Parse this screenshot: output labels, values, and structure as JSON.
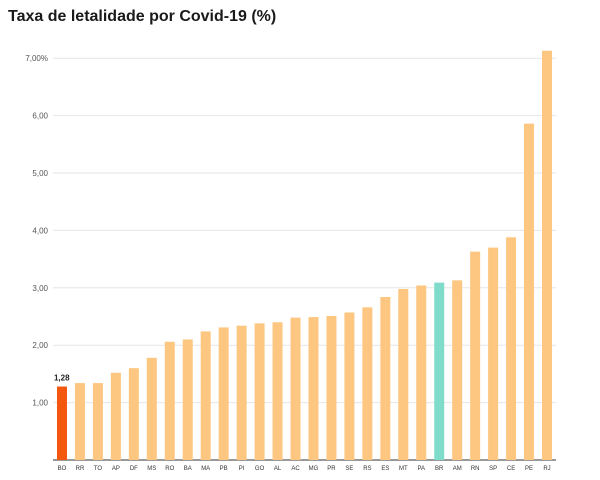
{
  "chart_data": {
    "type": "bar",
    "title": "Taxa de letalidade por Covid-19 (%)",
    "xlabel": "",
    "ylabel": "",
    "ylim": [
      0,
      7.5
    ],
    "grid": true,
    "y_ticks": [
      {
        "value": 1,
        "label": "1,00"
      },
      {
        "value": 2,
        "label": "2,00"
      },
      {
        "value": 3,
        "label": "3,00"
      },
      {
        "value": 4,
        "label": "4,00"
      },
      {
        "value": 5,
        "label": "5,00"
      },
      {
        "value": 6,
        "label": "6,00"
      },
      {
        "value": 7,
        "label": "7,00%"
      }
    ],
    "categories": [
      "BO",
      "RR",
      "TO",
      "AP",
      "DF",
      "MS",
      "RO",
      "BA",
      "MA",
      "PB",
      "PI",
      "GO",
      "AL",
      "AC",
      "MG",
      "PR",
      "SE",
      "RS",
      "ES",
      "MT",
      "PA",
      "BR",
      "AM",
      "RN",
      "SP",
      "CE",
      "PE",
      "RJ"
    ],
    "values": [
      1.28,
      1.34,
      1.34,
      1.52,
      1.6,
      1.78,
      2.06,
      2.1,
      2.24,
      2.31,
      2.34,
      2.38,
      2.4,
      2.48,
      2.49,
      2.51,
      2.57,
      2.66,
      2.84,
      2.98,
      3.04,
      3.09,
      3.13,
      3.63,
      3.7,
      3.88,
      5.86,
      7.13
    ],
    "annotations": [
      {
        "category": "BO",
        "label": "1,28"
      }
    ],
    "colors": {
      "default": "#fdc681",
      "highlight": "#f4570e",
      "national": "#7fdccb",
      "grid": "#e6e6e6",
      "axis": "#333333"
    },
    "highlight_category": "BO",
    "national_category": "BR"
  }
}
